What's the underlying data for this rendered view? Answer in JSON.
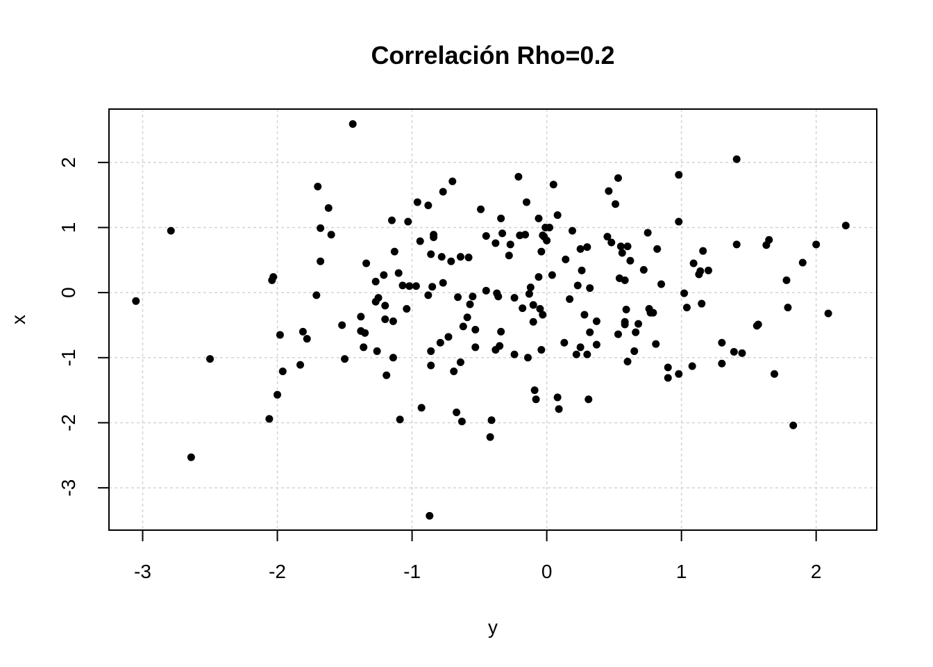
{
  "chart_data": {
    "type": "scatter",
    "title": "Correlación Rho=0.2",
    "xlabel": "y",
    "ylabel": "x",
    "xlim": [
      -3.25,
      2.45
    ],
    "ylim": [
      -3.65,
      2.82
    ],
    "xticks": [
      -3,
      -2,
      -1,
      0,
      1,
      2
    ],
    "yticks": [
      -3,
      -2,
      -1,
      0,
      1,
      2
    ],
    "xtick_labels": [
      "-3",
      "-2",
      "-1",
      "0",
      "1",
      "2"
    ],
    "ytick_labels": [
      "-3",
      "-2",
      "-1",
      "0",
      "1",
      "2"
    ],
    "grid": true,
    "marker_color": "#000000",
    "gridline_color": "#d3d3d3",
    "points": [
      [
        -3.05,
        -0.13
      ],
      [
        -2.79,
        0.95
      ],
      [
        -2.64,
        -2.53
      ],
      [
        -2.5,
        -1.02
      ],
      [
        -2.06,
        -1.94
      ],
      [
        -2.04,
        0.19
      ],
      [
        -2.03,
        0.24
      ],
      [
        -2.0,
        -1.57
      ],
      [
        -1.98,
        -0.65
      ],
      [
        -1.96,
        -1.21
      ],
      [
        -1.83,
        -1.11
      ],
      [
        -1.81,
        -0.6
      ],
      [
        -1.78,
        -0.71
      ],
      [
        -1.71,
        -0.04
      ],
      [
        -1.7,
        1.63
      ],
      [
        -1.68,
        0.99
      ],
      [
        -1.68,
        0.48
      ],
      [
        -1.62,
        1.3
      ],
      [
        -1.6,
        0.89
      ],
      [
        -1.52,
        -0.5
      ],
      [
        -1.5,
        -1.02
      ],
      [
        -1.44,
        2.59
      ],
      [
        -1.38,
        -0.37
      ],
      [
        -1.38,
        -0.59
      ],
      [
        -1.36,
        -0.84
      ],
      [
        -1.35,
        -0.62
      ],
      [
        -1.34,
        0.45
      ],
      [
        -1.27,
        -0.14
      ],
      [
        -1.27,
        0.17
      ],
      [
        -1.26,
        -0.9
      ],
      [
        -1.25,
        -0.08
      ],
      [
        -1.21,
        0.27
      ],
      [
        -1.2,
        -0.41
      ],
      [
        -1.2,
        -0.2
      ],
      [
        -1.19,
        -1.27
      ],
      [
        -1.15,
        1.11
      ],
      [
        -1.14,
        -0.44
      ],
      [
        -1.14,
        -1.0
      ],
      [
        -1.13,
        0.63
      ],
      [
        -1.1,
        0.3
      ],
      [
        -1.09,
        -1.95
      ],
      [
        -1.07,
        0.11
      ],
      [
        -1.04,
        -0.25
      ],
      [
        -1.03,
        1.09
      ],
      [
        -1.02,
        0.1
      ],
      [
        -0.97,
        0.1
      ],
      [
        -0.96,
        1.39
      ],
      [
        -0.94,
        0.79
      ],
      [
        -0.93,
        -1.77
      ],
      [
        -0.88,
        -0.04
      ],
      [
        -0.88,
        1.34
      ],
      [
        -0.86,
        0.59
      ],
      [
        -0.86,
        -1.12
      ],
      [
        -0.86,
        -0.9
      ],
      [
        -0.85,
        0.09
      ],
      [
        -0.84,
        0.89
      ],
      [
        -0.84,
        0.85
      ],
      [
        -0.87,
        -3.43
      ],
      [
        -0.79,
        -0.77
      ],
      [
        -0.78,
        0.55
      ],
      [
        -0.77,
        1.55
      ],
      [
        -0.77,
        0.15
      ],
      [
        -0.73,
        -0.68
      ],
      [
        -0.71,
        0.48
      ],
      [
        -0.7,
        1.71
      ],
      [
        -0.69,
        -1.21
      ],
      [
        -0.67,
        -1.84
      ],
      [
        -0.66,
        -0.07
      ],
      [
        -0.64,
        -1.07
      ],
      [
        -0.64,
        0.55
      ],
      [
        -0.63,
        -1.98
      ],
      [
        -0.62,
        -0.52
      ],
      [
        -0.59,
        -0.38
      ],
      [
        -0.58,
        0.54
      ],
      [
        -0.57,
        -0.18
      ],
      [
        -0.55,
        -0.06
      ],
      [
        -0.53,
        -0.57
      ],
      [
        -0.53,
        -0.84
      ],
      [
        -0.49,
        1.28
      ],
      [
        -0.45,
        0.03
      ],
      [
        -0.45,
        0.87
      ],
      [
        -0.42,
        -2.22
      ],
      [
        -0.41,
        -1.96
      ],
      [
        -0.38,
        0.76
      ],
      [
        -0.38,
        -0.88
      ],
      [
        -0.37,
        -0.01
      ],
      [
        -0.36,
        -0.06
      ],
      [
        -0.35,
        -0.82
      ],
      [
        -0.34,
        -0.6
      ],
      [
        -0.34,
        1.14
      ],
      [
        -0.33,
        0.91
      ],
      [
        -0.28,
        0.57
      ],
      [
        -0.27,
        0.74
      ],
      [
        -0.24,
        -0.95
      ],
      [
        -0.24,
        -0.08
      ],
      [
        -0.21,
        1.78
      ],
      [
        -0.2,
        0.88
      ],
      [
        -0.18,
        -0.24
      ],
      [
        -0.16,
        0.89
      ],
      [
        -0.15,
        1.39
      ],
      [
        -0.14,
        -1.0
      ],
      [
        -0.13,
        -0.02
      ],
      [
        -0.12,
        0.08
      ],
      [
        -0.1,
        -0.19
      ],
      [
        -0.1,
        -0.45
      ],
      [
        -0.09,
        -1.5
      ],
      [
        -0.08,
        -1.64
      ],
      [
        -0.06,
        1.14
      ],
      [
        -0.06,
        0.24
      ],
      [
        -0.05,
        -0.25
      ],
      [
        -0.04,
        -0.88
      ],
      [
        -0.04,
        0.63
      ],
      [
        -0.03,
        0.88
      ],
      [
        -0.03,
        -0.34
      ],
      [
        -0.02,
        0.86
      ],
      [
        -0.01,
        1.0
      ],
      [
        0.0,
        0.8
      ],
      [
        0.02,
        1.0
      ],
      [
        0.04,
        0.27
      ],
      [
        0.05,
        1.66
      ],
      [
        0.08,
        1.19
      ],
      [
        0.08,
        -1.61
      ],
      [
        0.09,
        -1.79
      ],
      [
        0.13,
        -0.77
      ],
      [
        0.14,
        0.51
      ],
      [
        0.17,
        -0.1
      ],
      [
        0.19,
        0.95
      ],
      [
        0.22,
        -0.95
      ],
      [
        0.23,
        0.11
      ],
      [
        0.25,
        0.67
      ],
      [
        0.25,
        -0.84
      ],
      [
        0.26,
        0.34
      ],
      [
        0.28,
        -0.34
      ],
      [
        0.3,
        0.7
      ],
      [
        0.3,
        -0.95
      ],
      [
        0.31,
        -1.64
      ],
      [
        0.32,
        -0.61
      ],
      [
        0.32,
        0.07
      ],
      [
        0.37,
        -0.44
      ],
      [
        0.37,
        -0.8
      ],
      [
        0.45,
        0.86
      ],
      [
        0.46,
        1.56
      ],
      [
        0.48,
        0.77
      ],
      [
        0.51,
        1.36
      ],
      [
        0.53,
        1.76
      ],
      [
        0.53,
        -0.64
      ],
      [
        0.54,
        0.22
      ],
      [
        0.55,
        0.71
      ],
      [
        0.56,
        0.61
      ],
      [
        0.58,
        -0.45
      ],
      [
        0.58,
        -0.49
      ],
      [
        0.58,
        0.19
      ],
      [
        0.59,
        -0.26
      ],
      [
        0.6,
        0.71
      ],
      [
        0.6,
        -1.06
      ],
      [
        0.62,
        0.49
      ],
      [
        0.65,
        -0.9
      ],
      [
        0.66,
        -0.61
      ],
      [
        0.68,
        -0.48
      ],
      [
        0.72,
        0.35
      ],
      [
        0.75,
        0.92
      ],
      [
        0.76,
        -0.25
      ],
      [
        0.77,
        -0.31
      ],
      [
        0.79,
        -0.31
      ],
      [
        0.81,
        -0.79
      ],
      [
        0.82,
        0.67
      ],
      [
        0.85,
        0.13
      ],
      [
        0.9,
        -1.31
      ],
      [
        0.9,
        -1.15
      ],
      [
        0.98,
        1.81
      ],
      [
        0.98,
        1.09
      ],
      [
        0.98,
        -1.25
      ],
      [
        1.02,
        -0.01
      ],
      [
        1.04,
        -0.23
      ],
      [
        1.08,
        -1.13
      ],
      [
        1.09,
        0.45
      ],
      [
        1.13,
        0.28
      ],
      [
        1.14,
        0.33
      ],
      [
        1.15,
        -0.17
      ],
      [
        1.16,
        0.64
      ],
      [
        1.2,
        0.34
      ],
      [
        1.3,
        -0.77
      ],
      [
        1.3,
        -1.09
      ],
      [
        1.39,
        -0.91
      ],
      [
        1.41,
        2.05
      ],
      [
        1.41,
        0.74
      ],
      [
        1.45,
        -0.93
      ],
      [
        1.56,
        -0.51
      ],
      [
        1.57,
        -0.49
      ],
      [
        1.63,
        0.73
      ],
      [
        1.65,
        0.81
      ],
      [
        1.69,
        -1.25
      ],
      [
        1.78,
        0.19
      ],
      [
        1.79,
        -0.23
      ],
      [
        1.83,
        -2.04
      ],
      [
        1.9,
        0.46
      ],
      [
        2.0,
        0.74
      ],
      [
        2.09,
        -0.32
      ],
      [
        2.22,
        1.03
      ]
    ]
  }
}
